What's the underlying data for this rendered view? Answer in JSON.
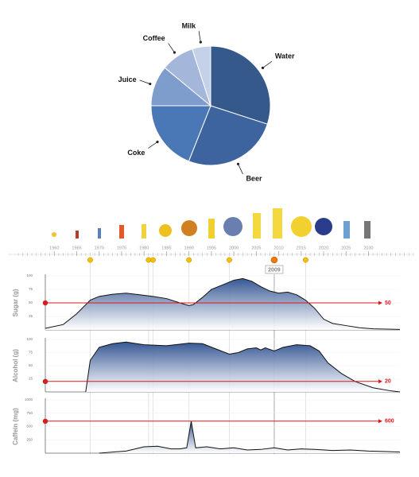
{
  "chart_data": [
    {
      "type": "pie",
      "categories": [
        "Water",
        "Beer",
        "Coke",
        "Juice",
        "Coffee",
        "Milk"
      ],
      "values": [
        30,
        26,
        19,
        11,
        9,
        5
      ],
      "colors": [
        "#34598a",
        "#3e64a0",
        "#4a77b5",
        "#7f9dcc",
        "#a4b7da",
        "#c5d1e8"
      ]
    },
    {
      "type": "timeline",
      "xlim": [
        1958,
        2037
      ],
      "xticks": [
        1960,
        1965,
        1970,
        1975,
        1980,
        1985,
        1990,
        1995,
        2000,
        2005,
        2010,
        2015,
        2020,
        2025,
        2030
      ],
      "events": [
        1968,
        1981,
        1982,
        1990,
        1999,
        2016
      ],
      "selected": 2009
    },
    {
      "type": "area",
      "y_label": "Sugar (g)",
      "xlim": [
        1958,
        2037
      ],
      "ylim": [
        0,
        100
      ],
      "yticks": [
        25,
        50,
        75,
        100
      ],
      "threshold": 50,
      "color": "#2c4f8f",
      "x": [
        1958,
        1962,
        1965,
        1968,
        1970,
        1973,
        1976,
        1979,
        1982,
        1985,
        1988,
        1990,
        1991,
        1993,
        1995,
        1998,
        2000,
        2002,
        2004,
        2006,
        2008,
        2010,
        2012,
        2014,
        2016,
        2018,
        2020,
        2022,
        2025,
        2028,
        2031,
        2037
      ],
      "values": [
        3,
        10,
        30,
        55,
        62,
        66,
        68,
        65,
        62,
        58,
        50,
        45,
        47,
        60,
        75,
        85,
        92,
        95,
        90,
        80,
        72,
        68,
        70,
        65,
        55,
        40,
        20,
        12,
        8,
        4,
        2,
        1
      ]
    },
    {
      "type": "area",
      "y_label": "Alcohol (g)",
      "xlim": [
        1958,
        2037
      ],
      "ylim": [
        0,
        100
      ],
      "yticks": [
        25,
        50,
        75,
        100
      ],
      "threshold": 20,
      "color": "#2c4f8f",
      "x": [
        1967,
        1968,
        1970,
        1973,
        1976,
        1980,
        1985,
        1990,
        1993,
        1996,
        1999,
        2001,
        2003,
        2005,
        2006,
        2007,
        2009,
        2011,
        2014,
        2017,
        2019,
        2021,
        2024,
        2027,
        2031,
        2035,
        2037
      ],
      "values": [
        0,
        60,
        85,
        92,
        95,
        90,
        88,
        93,
        92,
        82,
        72,
        75,
        82,
        84,
        80,
        84,
        78,
        85,
        90,
        88,
        78,
        55,
        35,
        20,
        8,
        2,
        0
      ]
    },
    {
      "type": "area",
      "y_label": "Caffein (mg)",
      "xlim": [
        1958,
        2037
      ],
      "ylim": [
        0,
        1000
      ],
      "yticks": [
        250,
        500,
        750,
        1000
      ],
      "threshold": 600,
      "color": "#2c4f8f",
      "x": [
        1970,
        1973,
        1976,
        1980,
        1983,
        1986,
        1988,
        1989.5,
        1990.5,
        1991.5,
        1994,
        1997,
        2000,
        2003,
        2006,
        2009,
        2012,
        2015,
        2018,
        2022,
        2026,
        2030,
        2034,
        2037
      ],
      "values": [
        0,
        20,
        40,
        120,
        130,
        80,
        80,
        100,
        600,
        100,
        120,
        80,
        100,
        60,
        70,
        100,
        60,
        80,
        70,
        50,
        60,
        40,
        30,
        20
      ]
    }
  ]
}
